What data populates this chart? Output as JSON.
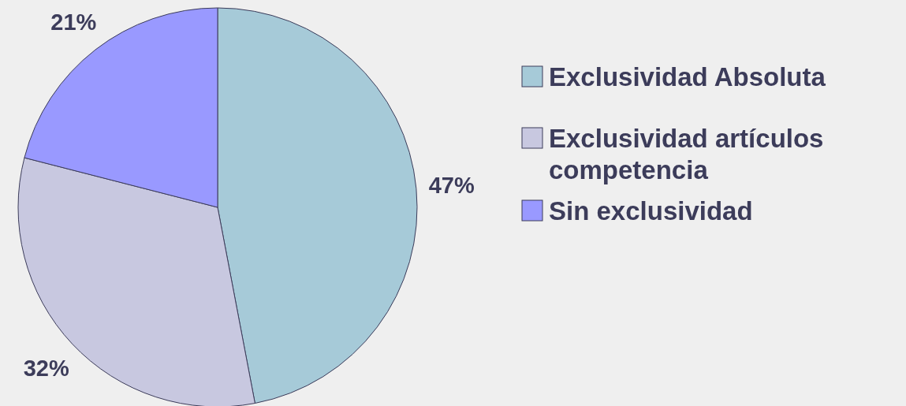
{
  "chart_data": {
    "type": "pie",
    "categories": [
      "Exclusividad Absoluta",
      "Exclusividad artículos competencia",
      "Sin exclusividad"
    ],
    "values": [
      47,
      32,
      21
    ],
    "colors": [
      "#a6cad8",
      "#c8c8e0",
      "#9999ff"
    ],
    "value_labels": [
      "47%",
      "32%",
      "21%"
    ],
    "legend": "right"
  }
}
